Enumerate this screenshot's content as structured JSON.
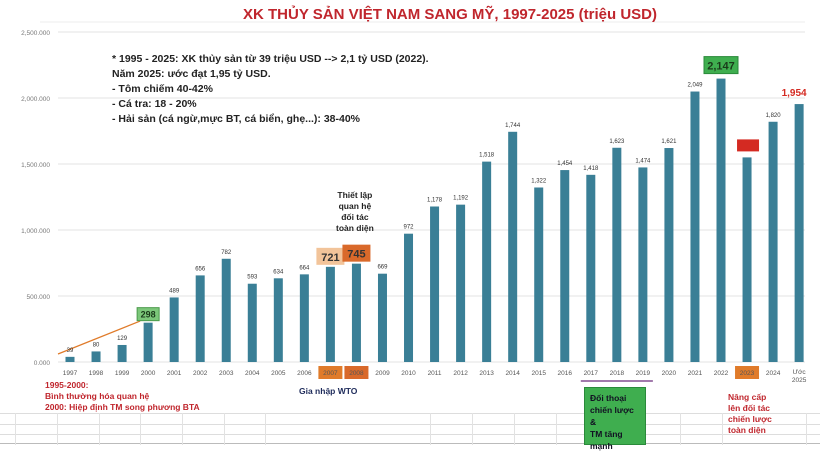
{
  "chart_data": {
    "type": "bar",
    "title": "XK THỦY SẢN VIỆT NAM SANG MỸ, 1997-2025 (triệu USD)",
    "xlabel": "",
    "ylabel": "",
    "ylim": [
      0,
      2500
    ],
    "grid": true,
    "bar_color": "#3a7f96",
    "y_ticks": [
      {
        "value": 0,
        "label": "0.000"
      },
      {
        "value": 500,
        "label": "500.000"
      },
      {
        "value": 1000,
        "label": "1,000.000"
      },
      {
        "value": 1500,
        "label": "1,500.000"
      },
      {
        "value": 2000,
        "label": "2,000.000"
      },
      {
        "value": 2500,
        "label": "2,500.000"
      }
    ],
    "categories": [
      "1997",
      "1998",
      "1999",
      "2000",
      "2001",
      "2002",
      "2003",
      "2004",
      "2005",
      "2006",
      "2007",
      "2008",
      "2009",
      "2010",
      "2011",
      "2012",
      "2013",
      "2014",
      "2015",
      "2016",
      "2017",
      "2018",
      "2019",
      "2020",
      "2021",
      "2022",
      "2023",
      "2024",
      "Ước 2025"
    ],
    "values": [
      39,
      80,
      129,
      298,
      489,
      656,
      782,
      593,
      634,
      664,
      721,
      745,
      669,
      972,
      1178,
      1192,
      1518,
      1744,
      1322,
      1454,
      1418,
      1623,
      1474,
      1621,
      2049,
      2147,
      1550,
      1820,
      1954
    ],
    "labels": [
      "39",
      "80",
      "129",
      "298",
      "489",
      "656",
      "782",
      "593",
      "634",
      "664",
      "721",
      "745",
      "669",
      "972",
      "1,178",
      "1,192",
      "1,518",
      "1,744",
      "1,322",
      "1,454",
      "1,418",
      "1,623",
      "1,474",
      "1,621",
      "2,049",
      "2,147",
      "",
      "1,820",
      "1,954"
    ],
    "highlighted_years": [
      "2007",
      "2008",
      "2023"
    ]
  },
  "notes": [
    "* 1995 - 2025: XK thủy sản từ 39 triệu USD --> 2,1 tỷ USD (2022).",
    "Năm 2025: ước đạt 1,95 tỷ USD.",
    "- Tôm chiếm 40-42%",
    "- Cá tra: 18 - 20%",
    "- Hải sản (cá ngừ,mực BT, cá biển, ghẹ...): 38-40%"
  ],
  "annotations": {
    "bta": [
      "1995-2000:",
      "Bình thường hóa quan hệ",
      "2000: Hiệp định TM song phương BTA"
    ],
    "wto": "Gia nhập WTO",
    "partnership_2008": [
      "Thiết lập",
      "quan hệ",
      "đối tác",
      "toàn diện"
    ],
    "dialogue": [
      "Đối thoại",
      "chiến lược &",
      "TM tăng",
      "mạnh"
    ],
    "upgrade_2023": [
      "Nâng cấp",
      "lên đối tác",
      "chiến lược",
      "toàn diện"
    ]
  },
  "colors": {
    "title": "#c0262d",
    "bar": "#3a7f96",
    "orange": "#e07b2a",
    "green": "#3fae4f",
    "red": "#d42a22"
  }
}
